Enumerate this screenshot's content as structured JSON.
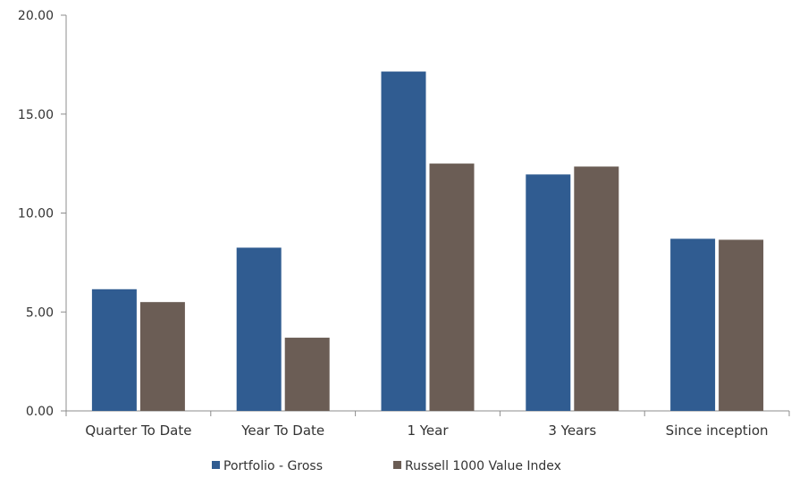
{
  "chart_data": {
    "type": "bar",
    "title": "",
    "xlabel": "",
    "ylabel": "",
    "categories": [
      "Quarter To Date",
      "Year To Date",
      "1 Year",
      "3 Years",
      "Since inception"
    ],
    "series": [
      {
        "name": "Portfolio - Gross",
        "color": "#305c91",
        "values": [
          6.15,
          8.25,
          17.15,
          11.95,
          8.7
        ]
      },
      {
        "name": "Russell 1000 Value Index",
        "color": "#6b5d55",
        "values": [
          5.5,
          3.7,
          12.5,
          12.35,
          8.65
        ]
      }
    ],
    "ylim": [
      0,
      20
    ],
    "yticks": [
      "0.00",
      "5.00",
      "10.00",
      "15.00",
      "20.00"
    ],
    "grid": false,
    "legend_position": "bottom"
  }
}
